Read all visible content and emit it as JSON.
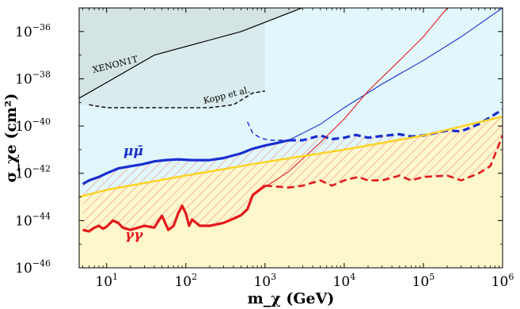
{
  "chart_data": {
    "type": "line",
    "xlabel": "m_χ (GeV)",
    "ylabel": "σ_χe (cm²)",
    "x_scale": "log",
    "y_scale": "log",
    "xlim": [
      4.5,
      1000000
    ],
    "ylim": [
      1e-46,
      1e-35
    ],
    "x_ticks": [
      10,
      100,
      1000,
      10000,
      100000,
      1000000
    ],
    "x_tick_labels": [
      "10",
      "10",
      "10",
      "10",
      "10",
      "10"
    ],
    "x_tick_exps": [
      "1",
      "2",
      "3",
      "4",
      "5",
      "6"
    ],
    "y_ticks": [
      1e-46,
      1e-44,
      1e-42,
      1e-40,
      1e-38,
      1e-36
    ],
    "y_tick_labels": [
      "10",
      "10",
      "10",
      "10",
      "10",
      "10"
    ],
    "y_tick_exps": [
      "−46",
      "−44",
      "−42",
      "−40",
      "−38",
      "−36"
    ],
    "colors": {
      "background": "#e1f7fb",
      "xenon_fill": "#d4e3e4",
      "yellow_band": "#fdf7cc",
      "hatch": "#f19a92",
      "mumu": "#1a2ecf",
      "gamma": "#e31a1c",
      "gold": "#ffd21f"
    },
    "regions": [
      {
        "name": "XENON1T",
        "label": "XENON1T"
      },
      {
        "name": "Kopp et al.",
        "label": "Kopp et al."
      }
    ],
    "series": [
      {
        "name": "μμ̄",
        "label": "μμ̄",
        "style": "solid",
        "points": [
          [
            5,
            3.5e-43
          ],
          [
            6,
            5e-43
          ],
          [
            8,
            7e-43
          ],
          [
            10,
            1e-42
          ],
          [
            14,
            1.6e-42
          ],
          [
            20,
            2e-42
          ],
          [
            28,
            2.4e-42
          ],
          [
            40,
            3.2e-42
          ],
          [
            55,
            3.6e-42
          ],
          [
            80,
            3.9e-42
          ],
          [
            120,
            3.6e-42
          ],
          [
            200,
            3.6e-42
          ],
          [
            300,
            4.4e-42
          ],
          [
            500,
            7e-42
          ],
          [
            700,
            1.1e-41
          ],
          [
            1000,
            1.5e-41
          ],
          [
            1500,
            2e-41
          ],
          [
            2000,
            2.5e-41
          ]
        ]
      },
      {
        "name": "μμ̄ (dashed)",
        "style": "dashed",
        "points": [
          [
            2000,
            2.5e-41
          ],
          [
            3000,
            2.5e-41
          ],
          [
            5000,
            4e-41
          ],
          [
            7000,
            2.8e-41
          ],
          [
            10000,
            3.2e-41
          ],
          [
            14000,
            4.2e-41
          ],
          [
            20000,
            3.2e-41
          ],
          [
            30000,
            3.8e-41
          ],
          [
            50000,
            4.5e-41
          ],
          [
            70000,
            3.6e-41
          ],
          [
            100000,
            4e-41
          ],
          [
            200000,
            6.5e-41
          ],
          [
            300000,
            6e-41
          ],
          [
            500000,
            1.2e-40
          ],
          [
            700000,
            2.4e-40
          ],
          [
            1000000,
            5e-40
          ]
        ]
      },
      {
        "name": "μμ̄ (thin dashed)",
        "style": "dashed-thin",
        "points": [
          [
            600,
            1.5e-40
          ],
          [
            700,
            5e-41
          ],
          [
            900,
            3e-41
          ],
          [
            1200,
            2.5e-41
          ],
          [
            2000,
            2.5e-41
          ]
        ]
      },
      {
        "name": "μμ̄ (thin solid)",
        "style": "solid-thin",
        "points": [
          [
            2000,
            2.5e-41
          ],
          [
            5000,
            1.2e-40
          ],
          [
            10000,
            6e-40
          ],
          [
            30000,
            6e-39
          ],
          [
            100000,
            6e-38
          ],
          [
            300000,
            6e-37
          ],
          [
            1000000,
            1e-35
          ]
        ]
      },
      {
        "name": "γγ",
        "label": "γγ",
        "style": "solid",
        "points": [
          [
            5,
            4e-45
          ],
          [
            6,
            3.5e-45
          ],
          [
            7,
            5e-45
          ],
          [
            8,
            6e-45
          ],
          [
            9,
            4.5e-45
          ],
          [
            10,
            5.5e-45
          ],
          [
            12,
            1e-44
          ],
          [
            14,
            8e-45
          ],
          [
            16,
            5e-45
          ],
          [
            20,
            4e-45
          ],
          [
            25,
            5e-45
          ],
          [
            30,
            6e-45
          ],
          [
            40,
            5e-45
          ],
          [
            50,
            1.6e-44
          ],
          [
            60,
            4e-45
          ],
          [
            70,
            6e-45
          ],
          [
            80,
            2e-44
          ],
          [
            90,
            4.2e-44
          ],
          [
            100,
            2e-44
          ],
          [
            110,
            6e-45
          ],
          [
            120,
            1.1e-44
          ],
          [
            150,
            6e-45
          ],
          [
            200,
            6e-45
          ],
          [
            300,
            8e-45
          ],
          [
            400,
            1.2e-44
          ],
          [
            500,
            1.7e-44
          ],
          [
            600,
            3e-44
          ],
          [
            700,
            1.2e-43
          ],
          [
            1000,
            3e-43
          ]
        ]
      },
      {
        "name": "γγ (dashed)",
        "style": "dashed",
        "points": [
          [
            1000,
            3e-43
          ],
          [
            2000,
            2.5e-43
          ],
          [
            3000,
            3e-43
          ],
          [
            5000,
            5e-43
          ],
          [
            7000,
            3e-43
          ],
          [
            10000,
            5e-43
          ],
          [
            15000,
            7e-43
          ],
          [
            20000,
            5e-43
          ],
          [
            30000,
            5e-43
          ],
          [
            50000,
            8e-43
          ],
          [
            70000,
            5e-43
          ],
          [
            100000,
            7e-43
          ],
          [
            200000,
            8e-43
          ],
          [
            300000,
            5e-43
          ],
          [
            500000,
            1e-42
          ],
          [
            700000,
            2e-42
          ],
          [
            1000000,
            4e-41
          ]
        ]
      },
      {
        "name": "γγ (thin solid)",
        "style": "solid-thin",
        "points": [
          [
            700,
            1.2e-43
          ],
          [
            2000,
            1.2e-42
          ],
          [
            5000,
            2e-41
          ],
          [
            10000,
            2e-40
          ],
          [
            20000,
            3e-39
          ],
          [
            50000,
            6e-38
          ],
          [
            100000,
            6e-37
          ],
          [
            200000,
            1e-35
          ]
        ]
      },
      {
        "name": "gold",
        "style": "solid",
        "points": [
          [
            4.5,
            1e-43
          ],
          [
            10,
            2e-43
          ],
          [
            100,
            8e-43
          ],
          [
            1000,
            3e-42
          ],
          [
            10000,
            1e-41
          ],
          [
            100000,
            4e-41
          ],
          [
            1000000,
            2.5e-40
          ]
        ]
      },
      {
        "name": "XENON1T",
        "style": "solid-thin",
        "points": [
          [
            4.5,
            1.5e-39
          ],
          [
            40,
            1e-37
          ],
          [
            500,
            1e-36
          ],
          [
            5000,
            2e-35
          ],
          [
            30000,
            1e-35
          ]
        ]
      },
      {
        "name": "Kopp et al.",
        "style": "dashed-thin",
        "points": [
          [
            6,
            8e-40
          ],
          [
            10,
            6e-40
          ],
          [
            50,
            6e-40
          ],
          [
            100,
            6e-40
          ],
          [
            200,
            6e-40
          ],
          [
            400,
            8e-40
          ],
          [
            700,
            2.5e-39
          ],
          [
            1000,
            3e-39
          ]
        ]
      }
    ]
  }
}
